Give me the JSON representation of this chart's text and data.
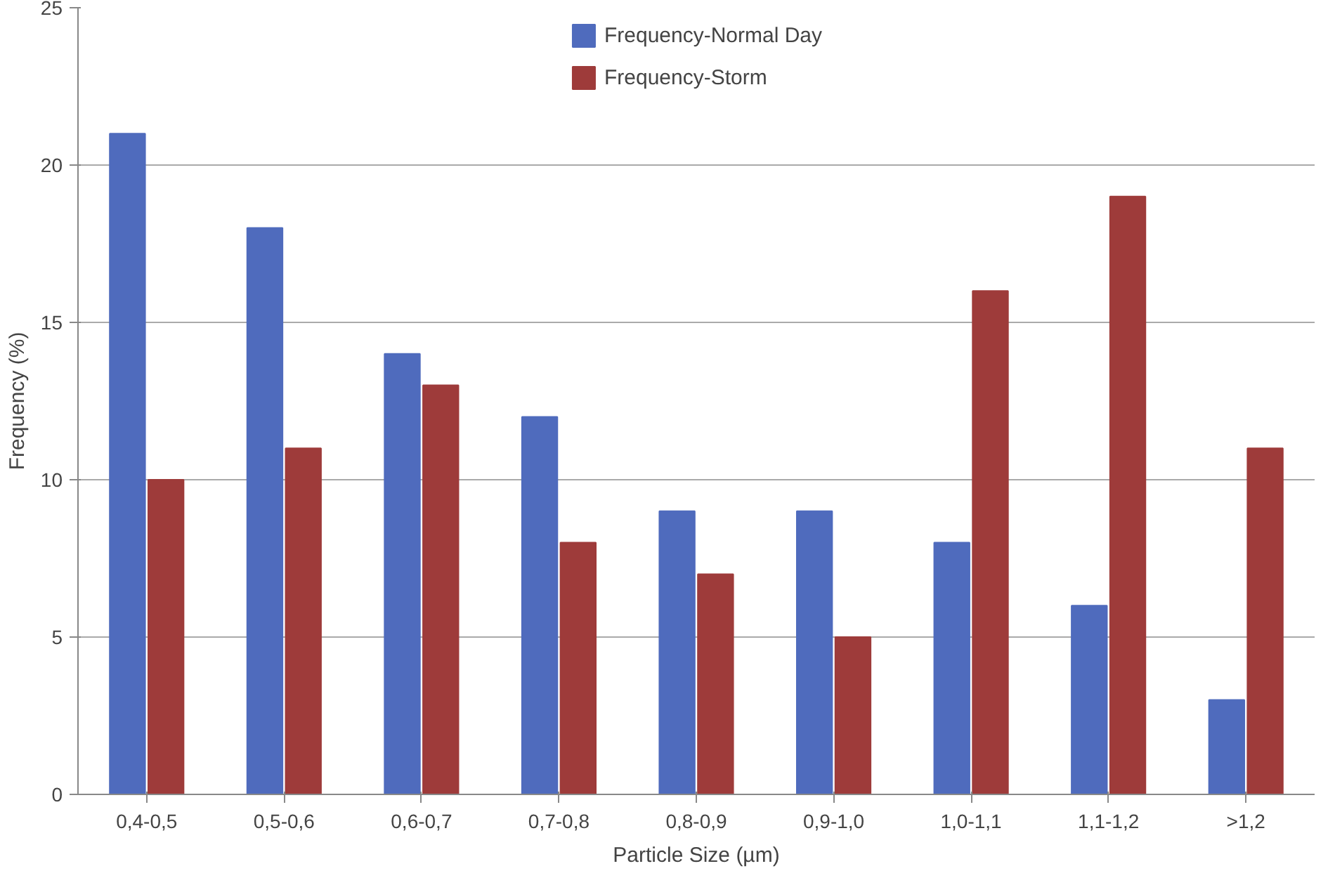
{
  "chart_data": {
    "type": "bar",
    "xlabel": "Particle Size (µm)",
    "ylabel": "Frequency (%)",
    "categories": [
      "0,4-0,5",
      "0,5-0,6",
      "0,6-0,7",
      "0,7-0,8",
      "0,8-0,9",
      "0,9-1,0",
      "1,0-1,1",
      "1,1-1,2",
      ">1,2"
    ],
    "series": [
      {
        "name": "Frequency-Normal Day",
        "color": "#4f6bbd",
        "values": [
          21,
          18,
          14,
          12,
          9,
          9,
          8,
          6,
          3
        ]
      },
      {
        "name": "Frequency-Storm",
        "color": "#9e3b3a",
        "values": [
          10,
          11,
          13,
          8,
          7,
          5,
          16,
          19,
          11
        ]
      }
    ],
    "ylim": [
      0,
      25
    ],
    "yticks": [
      0,
      5,
      10,
      15,
      20,
      25
    ],
    "grid": "y",
    "legend": "top"
  }
}
